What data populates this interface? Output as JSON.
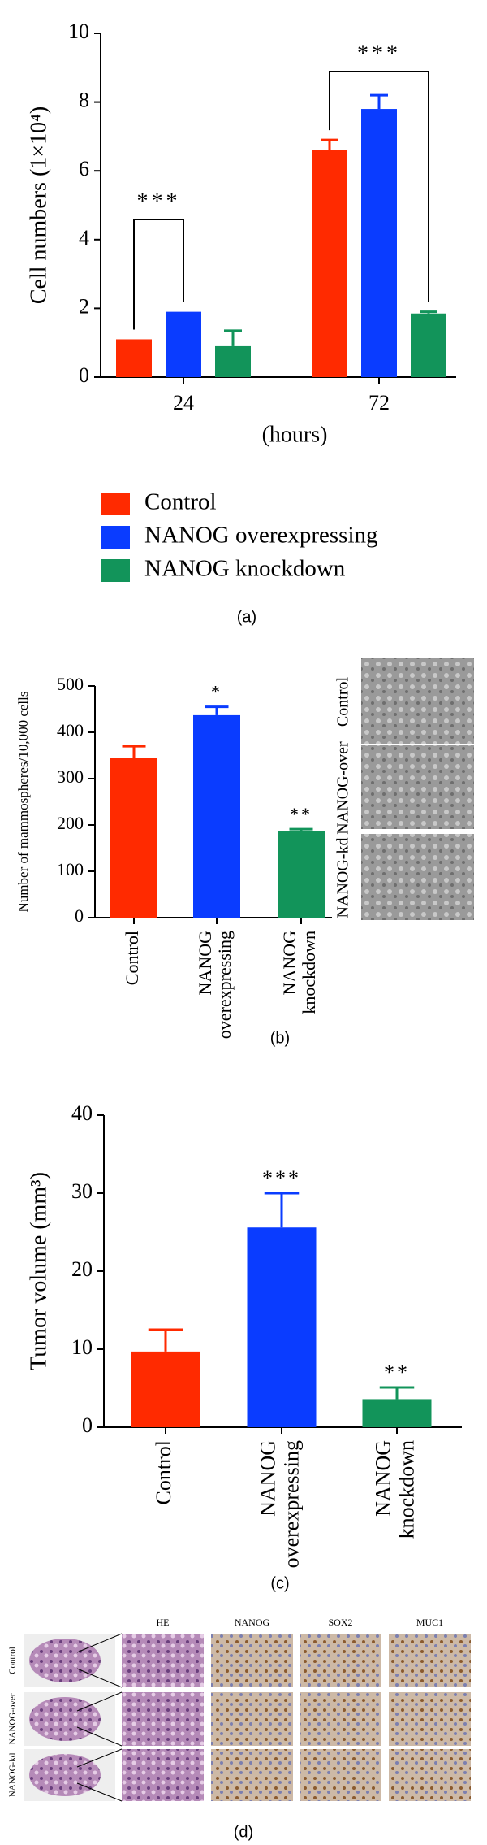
{
  "chart_data": [
    {
      "type": "grouped-bar",
      "panel_label": "(a)",
      "ylabel": "Cell numbers (1×10⁴)",
      "xlabel": "(hours)",
      "categories": [
        "24",
        "72"
      ],
      "series": [
        {
          "name": "Control",
          "color": "#ff2a00",
          "values": [
            1.1,
            6.6
          ],
          "errors": [
            0,
            0.3
          ]
        },
        {
          "name": "NANOG overexpressing",
          "color": "#0a3cff",
          "values": [
            1.9,
            7.8
          ],
          "errors": [
            0,
            0.4
          ]
        },
        {
          "name": "NANOG knockdown",
          "color": "#12945a",
          "values": [
            0.9,
            1.85
          ],
          "errors": [
            0.45,
            0.05
          ]
        }
      ],
      "significance": [
        "***",
        "***"
      ],
      "ylim": [
        0,
        10
      ],
      "yticks": [
        0,
        2,
        4,
        6,
        8,
        10
      ]
    },
    {
      "type": "bar",
      "panel_label": "(b)",
      "ylabel": "Number of mammospheres/10,000 cells",
      "categories": [
        "Control",
        "NANOG overexpressing",
        "NANOG knockdown"
      ],
      "colors": [
        "#ff2a00",
        "#0a3cff",
        "#12945a"
      ],
      "values": [
        345,
        437,
        187
      ],
      "errors": [
        25,
        18,
        4
      ],
      "significance": [
        null,
        "*",
        "**"
      ],
      "ylim": [
        0,
        500
      ],
      "yticks": [
        0,
        100,
        200,
        300,
        400,
        500
      ],
      "image_labels": [
        "Control",
        "NANOG-over",
        "NANOG-kd"
      ]
    },
    {
      "type": "bar",
      "panel_label": "(c)",
      "ylabel": "Tumor volume (mm³)",
      "categories": [
        "Control",
        "NANOG overexpressing",
        "NANOG knockdown"
      ],
      "colors": [
        "#ff2a00",
        "#0a3cff",
        "#12945a"
      ],
      "values": [
        9.7,
        25.6,
        3.6
      ],
      "errors": [
        2.8,
        4.4,
        1.5
      ],
      "significance": [
        null,
        "***",
        "**"
      ],
      "ylim": [
        0,
        40
      ],
      "yticks": [
        0,
        10,
        20,
        30,
        40
      ]
    }
  ],
  "panel_d": {
    "label": "(d)",
    "columns": [
      "HE",
      "NANOG",
      "SOX2",
      "MUC1"
    ],
    "rows": [
      "Control",
      "NANOG-over",
      "NANOG-kd"
    ]
  }
}
